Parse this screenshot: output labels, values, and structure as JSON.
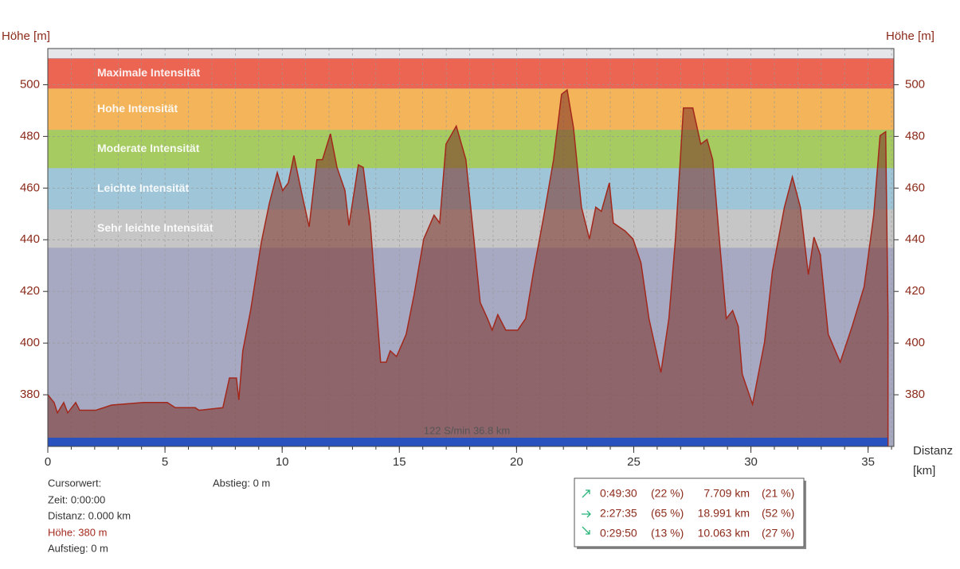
{
  "chart_data": {
    "type": "area",
    "y_label_left": "Höhe [m]",
    "y_label_right": "Höhe [m]",
    "x_label": "Distanz",
    "x_unit": "[km]",
    "status": "122 S/min 36.8 km",
    "xlim": [
      0,
      36.1
    ],
    "xticks": [
      0,
      5,
      10,
      15,
      20,
      25,
      30,
      35
    ],
    "ylim": [
      360,
      514
    ],
    "yticks": [
      380,
      400,
      420,
      440,
      460,
      480,
      500
    ],
    "grid": true,
    "color": "#a3281c",
    "fill": "#7a2e25",
    "zones": [
      {
        "name": "Maximale Intensität",
        "from": 498.5,
        "to": 510.1,
        "color": "#ec6452"
      },
      {
        "name": "Hohe Intensität",
        "from": 482.5,
        "to": 498.5,
        "color": "#f3b45a"
      },
      {
        "name": "Moderate Intensität",
        "from": 467.7,
        "to": 482.5,
        "color": "#a6cb61"
      },
      {
        "name": "Leichte Intensität",
        "from": 451.7,
        "to": 467.7,
        "color": "#9fc6d8"
      },
      {
        "name": "Sehr leichte Intensität",
        "from": 436.9,
        "to": 451.7,
        "color": "#c6c6c6"
      }
    ],
    "x": [
      0,
      0.27,
      0.41,
      0.68,
      0.85,
      1.19,
      1.36,
      2.04,
      2.72,
      4.08,
      5.1,
      5.44,
      6.29,
      6.45,
      7.47,
      7.75,
      8.05,
      8.15,
      8.32,
      8.66,
      9.11,
      9.45,
      9.79,
      10.02,
      10.26,
      10.5,
      10.81,
      11.15,
      11.48,
      11.72,
      12.06,
      12.34,
      12.68,
      12.85,
      13.25,
      13.46,
      13.76,
      14.2,
      14.44,
      14.61,
      14.88,
      15.29,
      15.63,
      16.04,
      16.48,
      16.72,
      16.99,
      17.43,
      17.84,
      18.18,
      18.45,
      18.76,
      18.96,
      19.2,
      19.54,
      20.05,
      20.39,
      20.73,
      21.17,
      21.58,
      21.92,
      22.16,
      22.43,
      22.77,
      23.11,
      23.38,
      23.62,
      23.96,
      24.13,
      24.63,
      24.97,
      25.31,
      25.65,
      26.16,
      26.5,
      26.78,
      27.12,
      27.52,
      27.86,
      28.13,
      28.37,
      28.71,
      28.95,
      29.22,
      29.46,
      29.63,
      30.07,
      30.58,
      30.92,
      31.43,
      31.77,
      32.11,
      32.45,
      32.69,
      32.96,
      33.3,
      33.81,
      34.32,
      34.83,
      35.24,
      35.51,
      35.75,
      35.85
    ],
    "values": [
      380,
      377,
      373,
      377,
      373,
      377,
      374,
      374,
      376,
      377,
      377,
      375,
      375,
      374,
      375,
      386.5,
      386.5,
      378,
      397,
      413,
      439,
      454,
      466,
      459,
      462,
      472.6,
      459,
      445,
      471,
      471,
      481,
      468,
      459,
      445.5,
      469,
      468,
      446.5,
      392.6,
      392.6,
      397,
      394.8,
      403.4,
      418.8,
      440.3,
      449.5,
      446.5,
      477,
      484,
      471,
      440.3,
      415.7,
      409.5,
      405,
      411,
      405,
      405,
      409.5,
      428,
      449.5,
      471,
      496.3,
      498,
      483.4,
      452.6,
      440.3,
      452.6,
      451,
      462,
      446.5,
      443.4,
      440.3,
      431,
      409.5,
      388.6,
      409.5,
      440.3,
      491,
      491,
      477,
      478.8,
      471,
      434.2,
      409.5,
      412.6,
      406.5,
      388,
      376.3,
      400.3,
      428,
      452.6,
      464.3,
      452.6,
      426.5,
      441,
      434.2,
      403.4,
      392.6,
      406.5,
      421.8,
      449.5,
      480.3,
      481.8,
      411
    ]
  },
  "cursor": {
    "title": "Cursorwert:",
    "time": "Zeit: 0:00:00",
    "distance": "Distanz: 0.000 km",
    "height": "Höhe:  380 m",
    "ascent": "Aufstieg: 0 m",
    "descent": "Abstieg: 0 m"
  },
  "summary": {
    "rows": [
      [
        "0:49:30",
        "(22 %)",
        "7.709 km",
        "(21 %)"
      ],
      [
        "2:27:35",
        "(65 %)",
        "18.991 km",
        "(52 %)"
      ],
      [
        "0:29:50",
        "(13 %)",
        "10.063 km",
        "(27 %)"
      ]
    ]
  }
}
